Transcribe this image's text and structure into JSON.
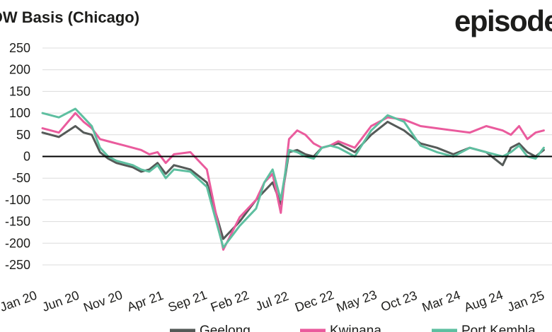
{
  "title": "DW Basis (Chicago)",
  "brand": "episode",
  "chart_data": {
    "type": "line",
    "title": "DW Basis (Chicago)",
    "xlabel": "",
    "ylabel": "",
    "ylim": [
      -250,
      250
    ],
    "yticks": [
      250,
      200,
      150,
      100,
      50,
      0,
      -50,
      -100,
      -150,
      -200,
      -250
    ],
    "xticks": [
      "Jan 20",
      "Jun 20",
      "Nov 20",
      "Apr 21",
      "Sep 21",
      "Feb 22",
      "Jul 22",
      "Dec 22",
      "May 23",
      "Oct 23",
      "Mar 24",
      "Aug 24",
      "Jan 25"
    ],
    "grid": "horizontal",
    "legend": "bottom",
    "zero_line": true,
    "x": [
      0,
      2,
      4,
      5,
      6,
      7,
      8,
      9,
      10,
      11,
      12,
      13,
      14,
      15,
      16,
      18,
      20,
      22,
      24,
      26,
      27,
      28,
      29,
      30,
      31,
      32,
      33,
      34,
      35,
      36,
      38,
      40,
      42,
      44,
      46,
      48,
      50,
      52,
      54,
      56,
      57,
      58,
      59,
      60,
      61
    ],
    "series": [
      {
        "name": "Geelong",
        "color": "#555a58",
        "values": [
          55,
          45,
          70,
          55,
          50,
          10,
          -5,
          -15,
          -20,
          -25,
          -35,
          -30,
          -15,
          -40,
          -20,
          -30,
          -60,
          -190,
          -150,
          -100,
          -80,
          -60,
          -110,
          10,
          15,
          5,
          0,
          20,
          25,
          30,
          10,
          50,
          80,
          60,
          30,
          20,
          5,
          20,
          10,
          -20,
          20,
          30,
          10,
          0,
          15
        ]
      },
      {
        "name": "Kwinana",
        "color": "#ea5b9d",
        "values": [
          65,
          55,
          100,
          80,
          65,
          40,
          35,
          30,
          25,
          20,
          15,
          5,
          10,
          -15,
          5,
          10,
          -30,
          -215,
          -140,
          -100,
          -60,
          -40,
          -130,
          40,
          60,
          50,
          30,
          20,
          25,
          35,
          20,
          70,
          90,
          85,
          70,
          65,
          60,
          55,
          70,
          60,
          50,
          70,
          40,
          55,
          60
        ]
      },
      {
        "name": "Port Kembla",
        "color": "#5ebfa0",
        "values": [
          100,
          90,
          110,
          90,
          70,
          20,
          0,
          -10,
          -15,
          -20,
          -30,
          -35,
          -20,
          -50,
          -30,
          -35,
          -70,
          -210,
          -160,
          -120,
          -60,
          -30,
          -100,
          15,
          10,
          0,
          -5,
          20,
          25,
          20,
          0,
          60,
          95,
          80,
          25,
          10,
          0,
          20,
          10,
          0,
          10,
          25,
          0,
          -5,
          20
        ]
      }
    ]
  }
}
